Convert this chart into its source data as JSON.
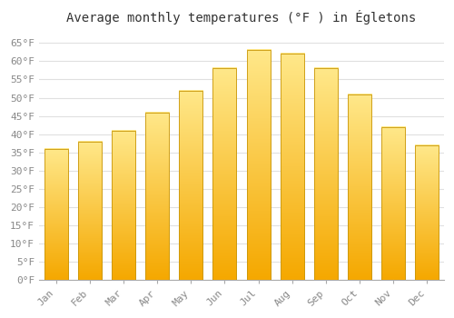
{
  "title": "Average monthly temperatures (°F ) in Égletons",
  "months": [
    "Jan",
    "Feb",
    "Mar",
    "Apr",
    "May",
    "Jun",
    "Jul",
    "Aug",
    "Sep",
    "Oct",
    "Nov",
    "Dec"
  ],
  "values": [
    36,
    38,
    41,
    46,
    52,
    58,
    63,
    62,
    58,
    51,
    42,
    37
  ],
  "bar_color_bottom": "#F5A800",
  "bar_color_top": "#FFE88A",
  "bar_color_edge": "#C8960A",
  "background_color": "#FFFFFF",
  "plot_bg_color": "#FFFFFF",
  "grid_color": "#E0E0E0",
  "ylim": [
    0,
    68
  ],
  "ytick_step": 5,
  "title_fontsize": 10,
  "tick_fontsize": 8,
  "font_family": "monospace"
}
